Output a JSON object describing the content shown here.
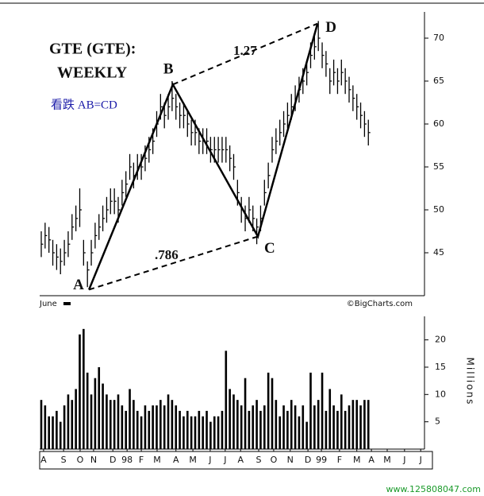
{
  "chart_data": [
    {
      "type": "ohlc",
      "title": "GTE (GTE):",
      "subtitle": "WEEKLY",
      "annotation": "看跌 AB=CD",
      "series": [
        {
          "name": "high",
          "color": "#000000",
          "values": [
            47.5,
            48.5,
            48,
            46.5,
            46,
            45.5,
            46.5,
            47.5,
            49.5,
            50.5,
            52.5,
            46.5,
            44,
            46.5,
            48.5,
            49.5,
            50.5,
            51.5,
            52.5,
            52.5,
            51.5,
            53.5,
            54.5,
            56.5,
            55.5,
            56.5,
            56.5,
            57.5,
            58.5,
            59.5,
            61.5,
            63.5,
            62.5,
            63.5,
            65,
            63.5,
            62.5,
            62.5,
            61.5,
            60.5,
            60.5,
            59.5,
            59.5,
            59.5,
            58.5,
            58.5,
            58.5,
            58.5,
            58.5,
            57.5,
            56.5,
            53.5,
            51.5,
            50.5,
            51.5,
            50.5,
            49,
            50.5,
            53.5,
            55.5,
            58.5,
            59.5,
            60.5,
            61.5,
            62.5,
            63.5,
            64.5,
            65.5,
            66.5,
            67.5,
            69.5,
            70.5,
            72,
            69.5,
            68.5,
            66.5,
            67.5,
            66.5,
            67.5,
            66.5,
            65.5,
            64.5,
            63.5,
            62.5,
            61.5,
            60.5
          ]
        },
        {
          "name": "low",
          "color": "#000000",
          "values": [
            44.5,
            45.5,
            45,
            43.5,
            43,
            42.5,
            43.5,
            44.5,
            46.5,
            47.5,
            48,
            43.5,
            41,
            43.5,
            45.5,
            46.5,
            47.5,
            48.5,
            49.5,
            49.5,
            48.5,
            50.5,
            51.5,
            53.5,
            52.5,
            53.5,
            53.5,
            54.5,
            55.5,
            56.5,
            58.5,
            60.5,
            59.5,
            60.5,
            61.5,
            60.5,
            59.5,
            59.5,
            58.5,
            57.5,
            57.5,
            56.5,
            56.5,
            56.5,
            55.5,
            55.5,
            55.5,
            55.5,
            55.5,
            54.5,
            53.5,
            50.5,
            48.5,
            47.5,
            48.5,
            47.5,
            46,
            47.5,
            50.5,
            52.5,
            55.5,
            56.5,
            57.5,
            58.5,
            59.5,
            60.5,
            61.5,
            62.5,
            63.5,
            64.5,
            66.5,
            67.5,
            68.5,
            66.5,
            65.5,
            63.5,
            64.5,
            63.5,
            64.5,
            63.5,
            62.5,
            61.5,
            60.5,
            59.5,
            58.5,
            57.5
          ]
        },
        {
          "name": "close",
          "color": "#000000",
          "values": [
            46,
            47,
            46.5,
            45,
            44.5,
            44,
            45,
            46,
            48,
            49,
            50,
            45,
            43,
            45,
            47,
            48,
            49,
            50,
            51,
            51,
            50,
            52,
            53,
            55,
            54,
            55,
            55,
            56,
            57,
            58,
            60,
            62,
            61,
            62,
            63,
            62,
            61,
            61,
            60,
            59,
            59,
            58,
            58,
            58,
            57,
            57,
            57,
            57,
            57,
            56,
            55,
            52,
            50,
            49,
            50,
            49,
            48,
            49,
            52,
            54,
            57,
            58,
            59,
            60,
            61,
            62,
            63,
            64,
            65,
            66,
            68,
            69,
            70,
            68,
            67,
            65,
            66,
            65,
            66,
            65,
            64,
            63,
            62,
            61,
            60,
            59
          ]
        }
      ],
      "pattern": {
        "points": [
          {
            "label": "A",
            "x": 12.4,
            "y": 40.7
          },
          {
            "label": "B",
            "x": 34.2,
            "y": 64.6
          },
          {
            "label": "C",
            "x": 56.3,
            "y": 46.9
          },
          {
            "label": "D",
            "x": 71.8,
            "y": 71.7
          }
        ],
        "ratios": [
          {
            "label": ".786"
          },
          {
            "label": "1.27"
          }
        ]
      },
      "xlim": [
        0,
        100
      ],
      "ylim": [
        40,
        73
      ],
      "yticks": [
        45,
        50,
        55,
        60,
        65,
        70
      ],
      "legend_label": "June",
      "credit": "©BigCharts.com"
    },
    {
      "type": "bar",
      "y_label": "Millions",
      "color": "#000000",
      "values": [
        9,
        8,
        6,
        6,
        7,
        5,
        8,
        10,
        9,
        11,
        21,
        22,
        14,
        10,
        13,
        15,
        12,
        10,
        9,
        9,
        10,
        8,
        7,
        11,
        9,
        7,
        6,
        8,
        7,
        8,
        8,
        9,
        8,
        10,
        9,
        8,
        7,
        6,
        7,
        6,
        6,
        7,
        6,
        7,
        5,
        6,
        6,
        7,
        18,
        11,
        10,
        9,
        8,
        13,
        7,
        8,
        9,
        7,
        8,
        14,
        13,
        9,
        6,
        8,
        7,
        9,
        8,
        6,
        8,
        5,
        14,
        8,
        9,
        14,
        7,
        11,
        8,
        7,
        10,
        7,
        8,
        9,
        9,
        8,
        9,
        9
      ],
      "xlim": [
        0,
        100
      ],
      "ylim": [
        0,
        24
      ],
      "yticks": [
        5,
        10,
        15,
        20
      ],
      "xticks": [
        {
          "value": 0.6,
          "label": "A"
        },
        {
          "value": 5.8,
          "label": "S"
        },
        {
          "value": 10.1,
          "label": "O"
        },
        {
          "value": 13.6,
          "label": "N"
        },
        {
          "value": 18.6,
          "label": "D"
        },
        {
          "value": 22.3,
          "label": "98"
        },
        {
          "value": 26,
          "label": "F"
        },
        {
          "value": 30.1,
          "label": "M"
        },
        {
          "value": 35,
          "label": "A"
        },
        {
          "value": 39.4,
          "label": "M"
        },
        {
          "value": 43.9,
          "label": "J"
        },
        {
          "value": 47.8,
          "label": "J"
        },
        {
          "value": 51.8,
          "label": "A"
        },
        {
          "value": 56.5,
          "label": "S"
        },
        {
          "value": 60.4,
          "label": "O"
        },
        {
          "value": 64.7,
          "label": "N"
        },
        {
          "value": 69.3,
          "label": "D"
        },
        {
          "value": 72.8,
          "label": "99"
        },
        {
          "value": 77.5,
          "label": "F"
        },
        {
          "value": 82,
          "label": "M"
        },
        {
          "value": 85.8,
          "label": "A"
        },
        {
          "value": 89.9,
          "label": "M"
        },
        {
          "value": 94.4,
          "label": "J"
        },
        {
          "value": 98.6,
          "label": "J"
        }
      ]
    }
  ],
  "watermark": "www.125808047.com"
}
